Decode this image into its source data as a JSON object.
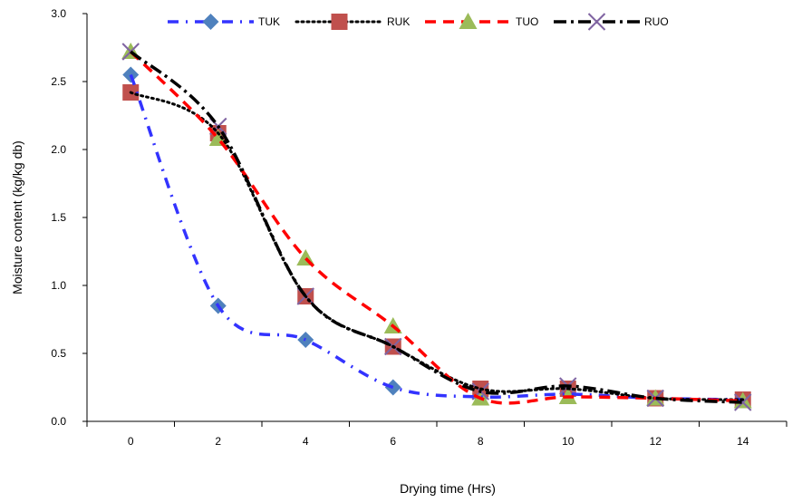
{
  "chart_data": {
    "type": "line",
    "title": "",
    "xlabel": "Drying time (Hrs)",
    "ylabel": "Moisture content (kg/kg db)",
    "xlim": [
      -1,
      15
    ],
    "ylim": [
      0,
      3.0
    ],
    "x_ticks": [
      0,
      2,
      4,
      6,
      8,
      10,
      12,
      14
    ],
    "y_ticks": [
      "0.0",
      "0.5",
      "1.0",
      "1.5",
      "2.0",
      "2.5",
      "3.0"
    ],
    "grid": false,
    "legend_position": "top",
    "x": [
      0,
      2,
      4,
      6,
      8,
      10,
      12,
      14
    ],
    "series": [
      {
        "name": "TUK",
        "values": [
          2.55,
          0.85,
          0.6,
          0.25,
          0.18,
          0.2,
          0.17,
          0.16
        ],
        "color": "#3333ff",
        "marker": "diamond",
        "marker_color": "#4f81bd",
        "dash": "dash-dot"
      },
      {
        "name": "RUK",
        "values": [
          2.42,
          2.12,
          0.92,
          0.55,
          0.24,
          0.24,
          0.17,
          0.16
        ],
        "color": "#000000",
        "marker": "square",
        "marker_color": "#c0504d",
        "dash": "dotted"
      },
      {
        "name": "TUO",
        "values": [
          2.72,
          2.08,
          1.2,
          0.7,
          0.17,
          0.18,
          0.17,
          0.15
        ],
        "color": "#ff0000",
        "marker": "triangle",
        "marker_color": "#9bbb59",
        "dash": "dashed"
      },
      {
        "name": "RUO",
        "values": [
          2.72,
          2.17,
          0.92,
          0.55,
          0.22,
          0.26,
          0.17,
          0.14
        ],
        "color": "#000000",
        "marker": "x",
        "marker_color": "#8064a2",
        "dash": "long-dash-dot"
      }
    ]
  }
}
